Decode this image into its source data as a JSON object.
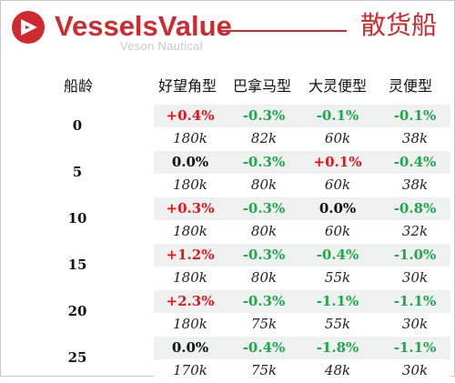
{
  "header": {
    "brand": "VesselsValue",
    "brand_sub": "Veson Nautical",
    "title": "散货船",
    "brand_color": "#cf2a2e"
  },
  "table": {
    "columns": [
      "船龄",
      "好望角型",
      "巴拿马型",
      "大灵便型",
      "灵便型"
    ],
    "rows": [
      {
        "age": "0",
        "cells": [
          [
            "+0.4%",
            "180k"
          ],
          [
            "-0.3%",
            "82k"
          ],
          [
            "-0.1%",
            "60k"
          ],
          [
            "-0.1%",
            "38k"
          ]
        ]
      },
      {
        "age": "5",
        "cells": [
          [
            "0.0%",
            "180k"
          ],
          [
            "-0.3%",
            "80k"
          ],
          [
            "+0.1%",
            "60k"
          ],
          [
            "-0.4%",
            "38k"
          ]
        ]
      },
      {
        "age": "10",
        "cells": [
          [
            "+0.3%",
            "180k"
          ],
          [
            "-0.3%",
            "80k"
          ],
          [
            "0.0%",
            "60k"
          ],
          [
            "-0.8%",
            "32k"
          ]
        ]
      },
      {
        "age": "15",
        "cells": [
          [
            "+1.2%",
            "180k"
          ],
          [
            "-0.3%",
            "80k"
          ],
          [
            "-0.4%",
            "55k"
          ],
          [
            "-1.0%",
            "30k"
          ]
        ]
      },
      {
        "age": "20",
        "cells": [
          [
            "+2.3%",
            "180k"
          ],
          [
            "-0.3%",
            "75k"
          ],
          [
            "-1.1%",
            "55k"
          ],
          [
            "-1.1%",
            "30k"
          ]
        ]
      },
      {
        "age": "25",
        "cells": [
          [
            "0.0%",
            "170k"
          ],
          [
            "-0.4%",
            "75k"
          ],
          [
            "-1.8%",
            "48k"
          ],
          [
            "-1.1%",
            "30k"
          ]
        ]
      }
    ]
  },
  "colors": {
    "positive": "#e8141c",
    "negative": "#1fa84a",
    "neutral": "#111111",
    "band": "#eef1f0"
  }
}
